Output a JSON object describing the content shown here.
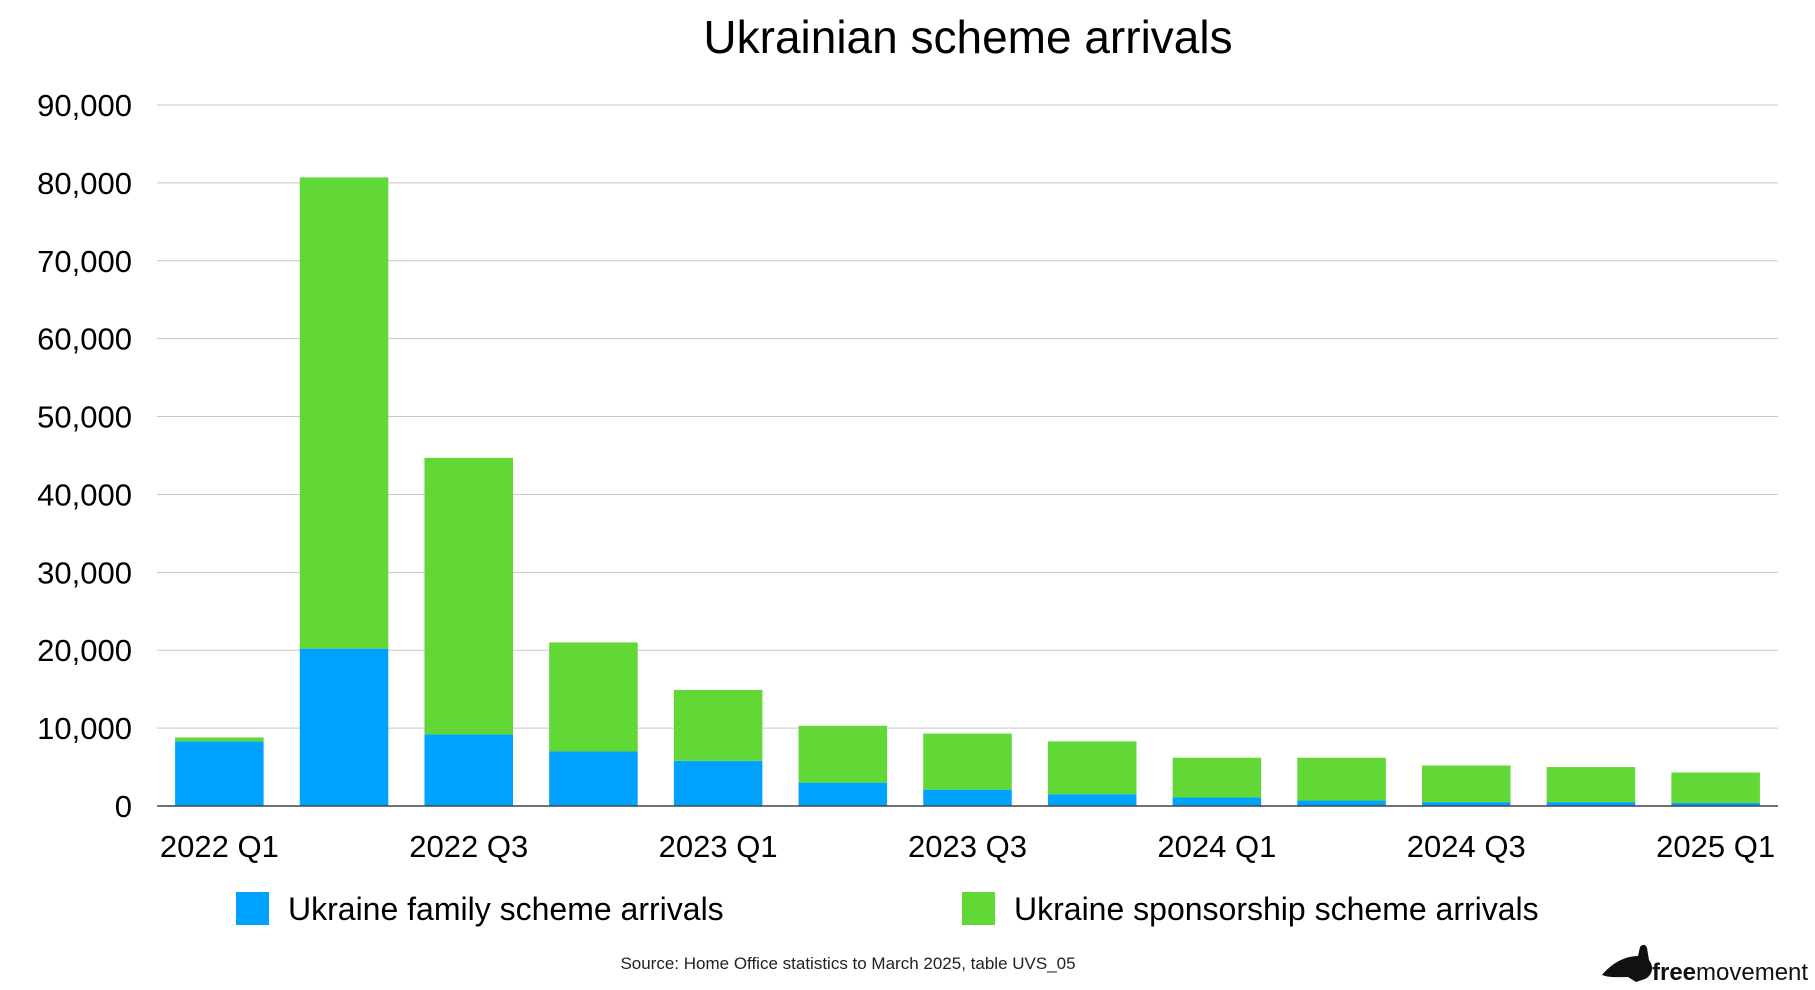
{
  "chart_data": {
    "type": "bar",
    "stacked": true,
    "title": "Ukrainian scheme arrivals",
    "categories": [
      "2022 Q1",
      "2022 Q2",
      "2022 Q3",
      "2022 Q4",
      "2023 Q1",
      "2023 Q2",
      "2023 Q3",
      "2023 Q4",
      "2024 Q1",
      "2024 Q2",
      "2024 Q3",
      "2024 Q4",
      "2025 Q1"
    ],
    "x_tick_labels": [
      "2022 Q1",
      "",
      "2022 Q3",
      "",
      "2023 Q1",
      "",
      "2023 Q3",
      "",
      "2024 Q1",
      "",
      "2024 Q3",
      "",
      "2025 Q1"
    ],
    "y_ticks": [
      "0",
      "10,000",
      "20,000",
      "30,000",
      "40,000",
      "50,000",
      "60,000",
      "70,000",
      "80,000",
      "90,000"
    ],
    "ylim": [
      0,
      90000
    ],
    "grid": true,
    "legend_position": "bottom",
    "series": [
      {
        "name": "Ukraine family scheme arrivals",
        "color": "#00a2ff",
        "values": [
          8300,
          20200,
          9200,
          7000,
          5800,
          3000,
          2100,
          1500,
          1100,
          700,
          500,
          500,
          400
        ]
      },
      {
        "name": "Ukraine sponsorship scheme arrivals",
        "color": "#61d836",
        "values": [
          500,
          60500,
          35500,
          14000,
          9100,
          7300,
          7200,
          6800,
          5100,
          5500,
          4700,
          4500,
          3900
        ]
      }
    ]
  },
  "source_note": "Source: Home Office statistics to March 2025, table UVS_05",
  "logo": {
    "text_bold": "free",
    "text_regular": "movement"
  }
}
